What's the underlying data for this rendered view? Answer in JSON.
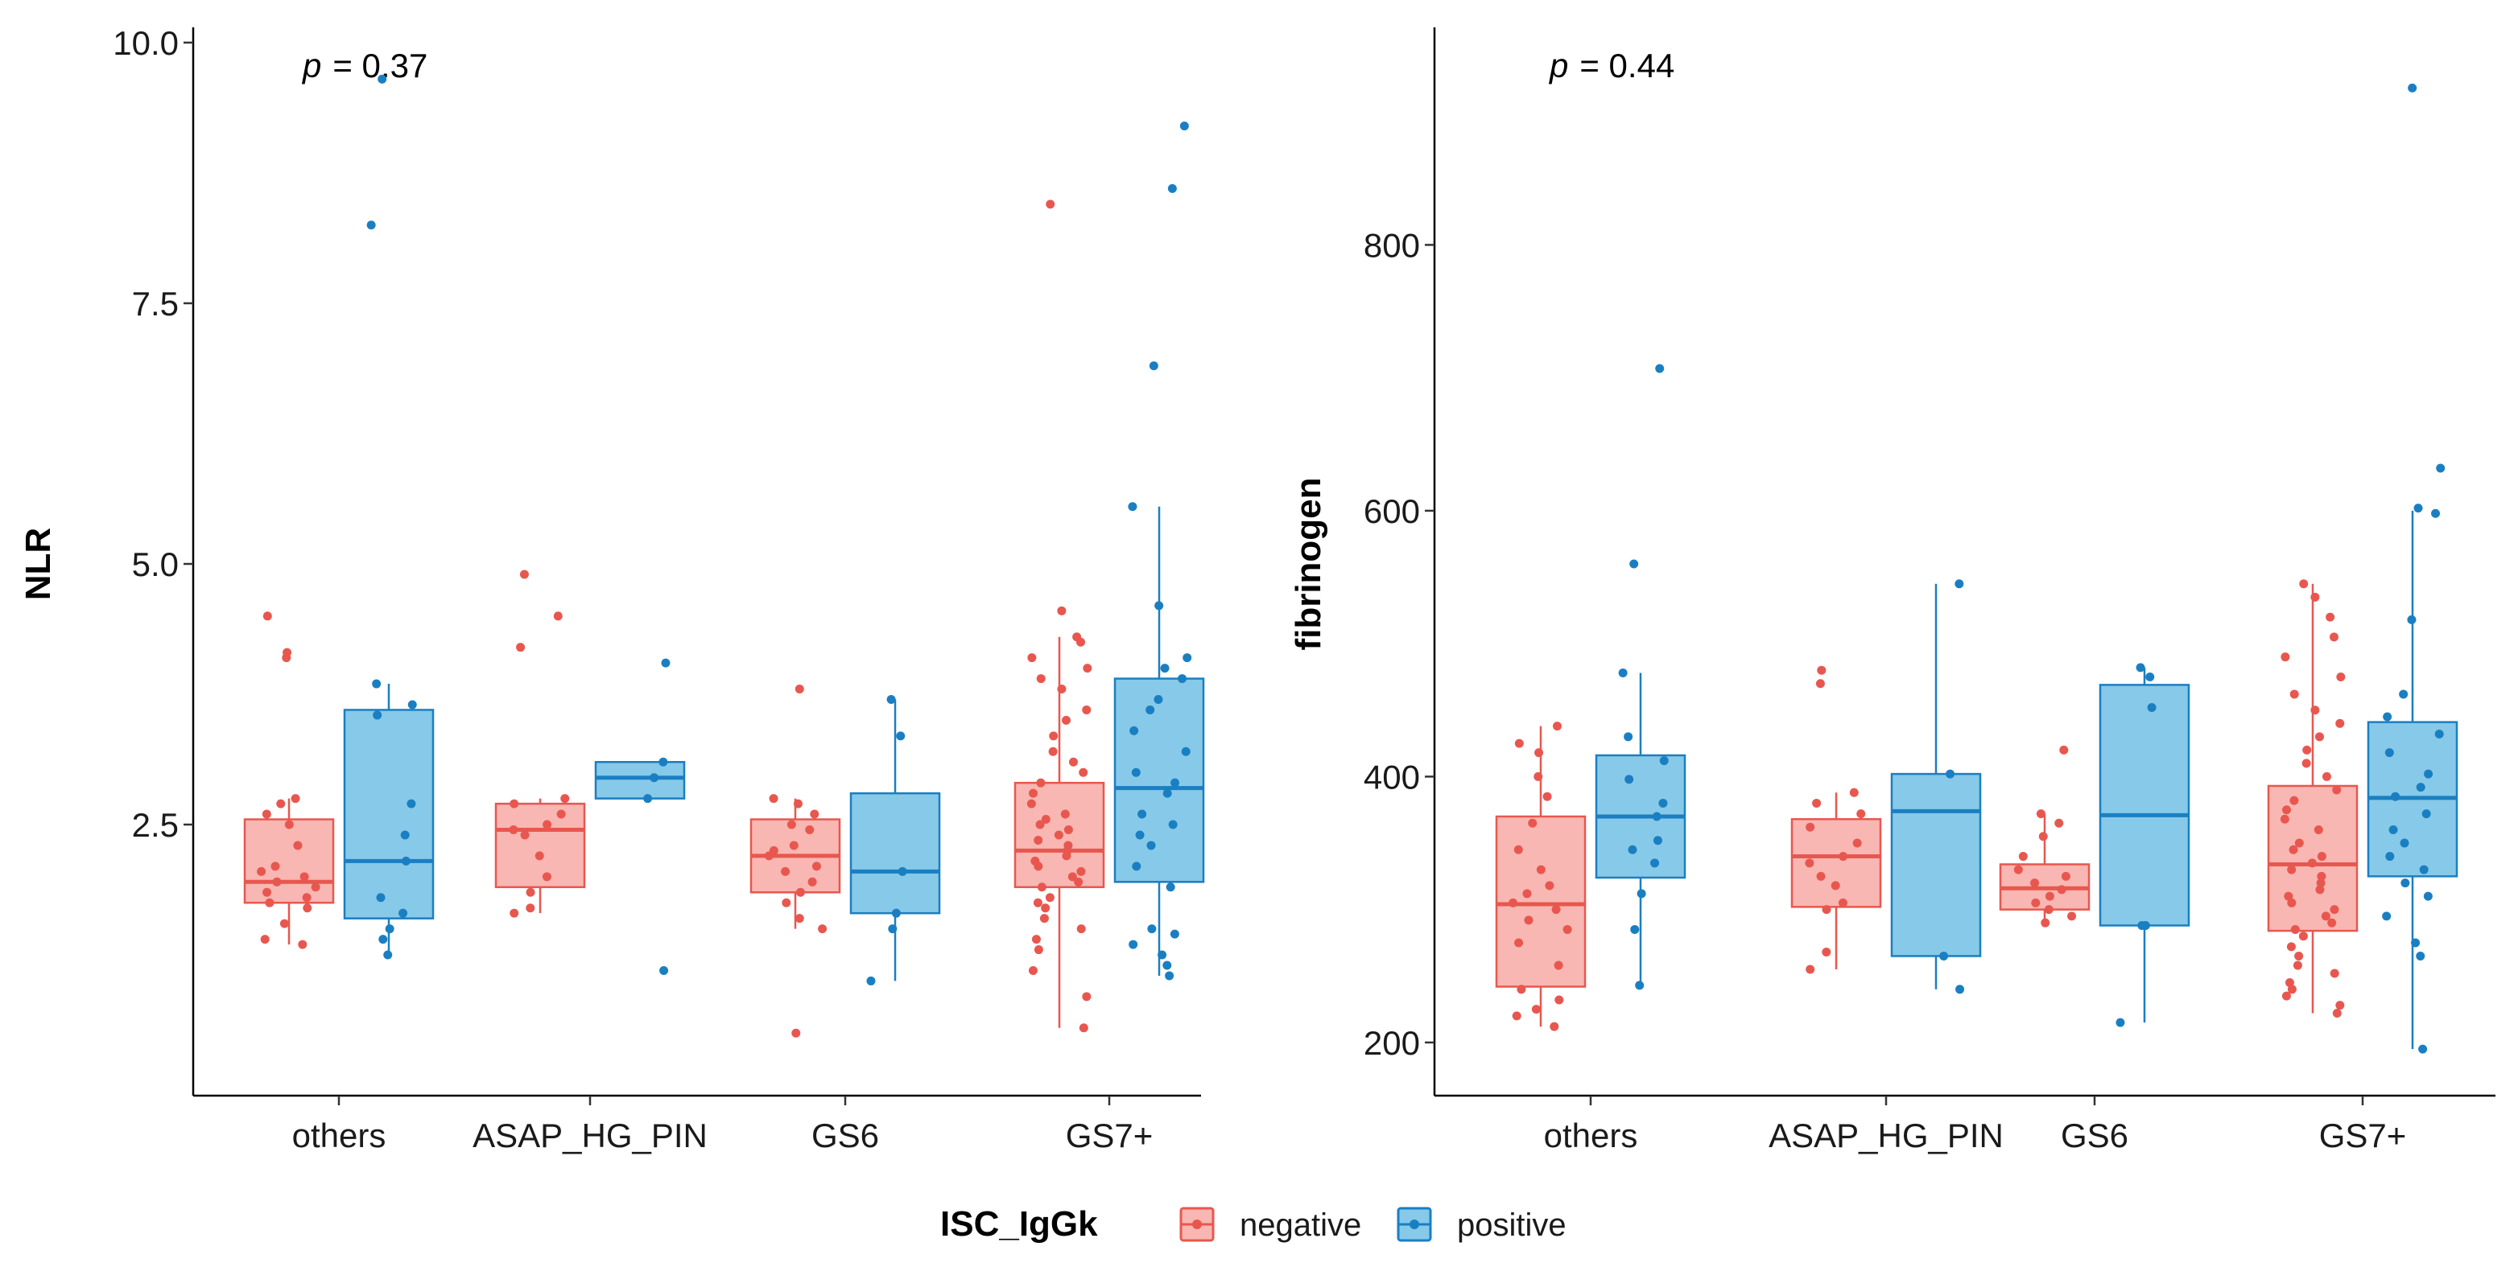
{
  "legend": {
    "title": "ISC_IgGk",
    "entries": [
      {
        "label": "negative",
        "fill": "#F8B7B2",
        "stroke": "#E8574F"
      },
      {
        "label": "positive",
        "fill": "#87C9E8",
        "stroke": "#1A7FC2"
      }
    ]
  },
  "chart_data": [
    {
      "type": "box",
      "ylabel": "NLR",
      "xlabel": "",
      "ylim": [
        -0.1,
        10.1
      ],
      "yticks": [
        2.5,
        5.0,
        7.5,
        10.0
      ],
      "ytick_labels": [
        "2.5",
        "5.0",
        "7.5",
        "10.0"
      ],
      "categories": [
        "others",
        "ASAP_HG_PIN",
        "GS6",
        "GS7+"
      ],
      "p_label": "p",
      "p_value": "= 0.37",
      "series": [
        {
          "name": "negative",
          "boxes": [
            {
              "whisker_low": 1.35,
              "q1": 1.75,
              "median": 1.95,
              "q3": 2.55,
              "whisker_high": 2.75,
              "points": [
                1.35,
                1.4,
                1.55,
                1.7,
                1.75,
                1.8,
                1.85,
                1.9,
                1.95,
                2.0,
                2.05,
                2.1,
                2.3,
                2.5,
                2.6,
                2.7,
                2.75,
                4.1,
                4.15,
                4.5
              ]
            },
            {
              "whisker_low": 1.65,
              "q1": 1.9,
              "median": 2.45,
              "q3": 2.7,
              "whisker_high": 2.75,
              "points": [
                1.65,
                1.7,
                1.85,
                2.0,
                2.2,
                2.4,
                2.45,
                2.5,
                2.6,
                2.7,
                2.75,
                4.2,
                4.5,
                4.9
              ]
            },
            {
              "whisker_low": 1.5,
              "q1": 1.85,
              "median": 2.2,
              "q3": 2.55,
              "whisker_high": 2.75,
              "points": [
                0.5,
                1.5,
                1.6,
                1.75,
                1.85,
                1.95,
                2.05,
                2.1,
                2.2,
                2.25,
                2.3,
                2.45,
                2.5,
                2.6,
                2.7,
                2.75,
                3.8
              ]
            },
            {
              "whisker_low": 0.55,
              "q1": 1.9,
              "median": 2.25,
              "q3": 2.9,
              "whisker_high": 4.3,
              "points": [
                0.55,
                0.85,
                1.1,
                1.3,
                1.4,
                1.5,
                1.6,
                1.7,
                1.75,
                1.8,
                1.9,
                1.95,
                2.0,
                2.05,
                2.1,
                2.15,
                2.2,
                2.25,
                2.3,
                2.35,
                2.4,
                2.45,
                2.5,
                2.55,
                2.6,
                2.7,
                2.8,
                2.9,
                3.0,
                3.1,
                3.2,
                3.35,
                3.5,
                3.6,
                3.8,
                3.9,
                4.0,
                4.1,
                4.25,
                4.3,
                4.55,
                8.45
              ]
            }
          ]
        },
        {
          "name": "positive",
          "boxes": [
            {
              "whisker_low": 1.25,
              "q1": 1.6,
              "median": 2.15,
              "q3": 3.6,
              "whisker_high": 3.85,
              "points": [
                1.25,
                1.4,
                1.5,
                1.65,
                1.8,
                2.15,
                2.4,
                2.7,
                3.55,
                3.65,
                3.85,
                8.25,
                9.65
              ]
            },
            {
              "whisker_low": 2.75,
              "q1": 2.75,
              "median": 2.95,
              "q3": 3.1,
              "whisker_high": 3.1,
              "points": [
                1.1,
                2.75,
                2.95,
                3.1,
                4.05
              ]
            },
            {
              "whisker_low": 1.0,
              "q1": 1.65,
              "median": 2.05,
              "q3": 2.8,
              "whisker_high": 3.7,
              "points": [
                1.0,
                1.5,
                1.65,
                2.05,
                3.35,
                3.7
              ]
            },
            {
              "whisker_low": 1.05,
              "q1": 1.95,
              "median": 2.85,
              "q3": 3.9,
              "whisker_high": 5.55,
              "points": [
                1.05,
                1.15,
                1.25,
                1.35,
                1.45,
                1.5,
                1.9,
                2.1,
                2.3,
                2.4,
                2.5,
                2.6,
                2.8,
                2.9,
                3.0,
                3.2,
                3.4,
                3.6,
                3.7,
                3.9,
                4.0,
                4.1,
                4.6,
                5.55,
                6.9,
                8.6,
                9.2
              ]
            }
          ]
        }
      ]
    },
    {
      "type": "box",
      "ylabel": "fibrinogen",
      "xlabel": "",
      "ylim": [
        160,
        960
      ],
      "yticks": [
        200,
        400,
        600,
        800
      ],
      "ytick_labels": [
        "200",
        "400",
        "600",
        "800"
      ],
      "categories": [
        "others",
        "ASAP_HG_PIN",
        "GS6",
        "GS7+"
      ],
      "p_label": "p",
      "p_value": "= 0.44",
      "series": [
        {
          "name": "negative",
          "boxes": [
            {
              "whisker_low": 212,
              "q1": 242,
              "median": 304,
              "q3": 370,
              "whisker_high": 438,
              "points": [
                212,
                220,
                225,
                232,
                240,
                258,
                275,
                285,
                292,
                300,
                305,
                312,
                318,
                330,
                345,
                365,
                385,
                400,
                418,
                425,
                438
              ]
            },
            {
              "whisker_low": 255,
              "q1": 302,
              "median": 340,
              "q3": 368,
              "whisker_high": 388,
              "points": [
                255,
                268,
                300,
                305,
                318,
                325,
                335,
                340,
                350,
                362,
                372,
                380,
                388,
                470,
                480
              ]
            },
            {
              "whisker_low": 290,
              "q1": 300,
              "median": 316,
              "q3": 334,
              "whisker_high": 372,
              "points": [
                290,
                295,
                300,
                305,
                310,
                315,
                320,
                325,
                330,
                340,
                355,
                365,
                372,
                420
              ]
            },
            {
              "whisker_low": 222,
              "q1": 284,
              "median": 334,
              "q3": 393,
              "whisker_high": 545,
              "points": [
                222,
                228,
                235,
                240,
                245,
                252,
                258,
                265,
                272,
                280,
                285,
                290,
                295,
                300,
                305,
                310,
                315,
                320,
                325,
                330,
                335,
                340,
                345,
                350,
                360,
                368,
                375,
                382,
                390,
                400,
                410,
                420,
                430,
                440,
                450,
                462,
                475,
                490,
                505,
                520,
                535,
                545
              ]
            }
          ]
        },
        {
          "name": "positive",
          "boxes": [
            {
              "whisker_low": 243,
              "q1": 324,
              "median": 370,
              "q3": 416,
              "whisker_high": 478,
              "points": [
                243,
                285,
                312,
                335,
                345,
                352,
                370,
                380,
                398,
                412,
                430,
                478,
                560,
                707
              ]
            },
            {
              "whisker_low": 240,
              "q1": 265,
              "median": 374,
              "q3": 402,
              "whisker_high": 545,
              "points": [
                240,
                265,
                402,
                545
              ]
            },
            {
              "whisker_low": 215,
              "q1": 288,
              "median": 371,
              "q3": 469,
              "whisker_high": 482,
              "points": [
                215,
                288,
                288,
                452,
                475,
                482
              ]
            },
            {
              "whisker_low": 195,
              "q1": 325,
              "median": 384,
              "q3": 441,
              "whisker_high": 600,
              "points": [
                195,
                265,
                275,
                295,
                310,
                320,
                330,
                340,
                350,
                360,
                372,
                385,
                392,
                402,
                418,
                432,
                445,
                462,
                518,
                598,
                602,
                632,
                918
              ]
            }
          ]
        }
      ]
    }
  ]
}
